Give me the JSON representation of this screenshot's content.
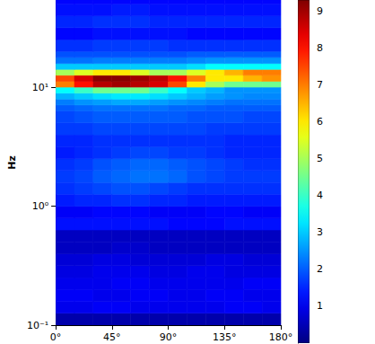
{
  "chart_data": {
    "type": "heatmap",
    "y_label": "Hz",
    "log": "y",
    "grid": false,
    "xlim": [
      0,
      180
    ],
    "xticks": [
      {
        "value": 0,
        "label": "0°"
      },
      {
        "value": 45,
        "label": "45°"
      },
      {
        "value": 90,
        "label": "90°"
      },
      {
        "value": 135,
        "label": "135°"
      },
      {
        "value": 180,
        "label": "180°"
      }
    ],
    "ylim": [
      0.1,
      54
    ],
    "yticks": [
      {
        "value": 0.1,
        "label": "10⁻¹"
      },
      {
        "value": 1,
        "label": "10⁰"
      },
      {
        "value": 10,
        "label": "10¹"
      }
    ],
    "x_edges": [
      0,
      15,
      30,
      45,
      60,
      75,
      90,
      105,
      120,
      135,
      150,
      165,
      180
    ],
    "y_edges": [
      0.1,
      0.126,
      0.158,
      0.2,
      0.251,
      0.316,
      0.398,
      0.501,
      0.631,
      0.794,
      1,
      1.26,
      1.58,
      2,
      2.51,
      3.16,
      3.98,
      5.01,
      6.31,
      7.08,
      7.94,
      8.91,
      10,
      11.2,
      12.6,
      14.1,
      15.8,
      17.8,
      20,
      25.1,
      31.6,
      39.8,
      50.1,
      54
    ],
    "cells": [
      [
        0.4,
        0.4,
        0.4,
        0.4,
        0.4,
        0.4,
        0.4,
        0.4,
        0.4,
        0.4,
        0.4,
        0.4
      ],
      [
        1.0,
        1.0,
        1.1,
        1.1,
        1.0,
        1.0,
        1.0,
        1.0,
        1.0,
        1.1,
        1.1,
        1.0
      ],
      [
        1.1,
        1.1,
        1.0,
        1.0,
        1.1,
        1.1,
        1.0,
        1.0,
        1.1,
        1.1,
        1.0,
        1.0
      ],
      [
        1.0,
        1.0,
        1.0,
        1.1,
        1.1,
        1.0,
        1.0,
        1.0,
        1.0,
        1.0,
        1.1,
        1.1
      ],
      [
        0.9,
        0.9,
        1.0,
        1.0,
        1.0,
        0.9,
        0.9,
        1.0,
        1.0,
        0.9,
        0.9,
        0.9
      ],
      [
        0.8,
        0.8,
        0.9,
        0.9,
        0.8,
        0.8,
        0.8,
        0.8,
        0.9,
        0.9,
        0.8,
        0.8
      ],
      [
        0.6,
        0.6,
        0.6,
        0.7,
        0.7,
        0.6,
        0.6,
        0.6,
        0.6,
        0.6,
        0.6,
        0.6
      ],
      [
        0.6,
        0.6,
        0.6,
        0.6,
        0.6,
        0.6,
        0.6,
        0.6,
        0.6,
        0.6,
        0.6,
        0.6
      ],
      [
        1.3,
        1.3,
        1.3,
        1.3,
        1.3,
        1.3,
        1.2,
        1.2,
        1.2,
        1.3,
        1.3,
        1.3
      ],
      [
        1.1,
        1.1,
        1.2,
        1.2,
        1.2,
        1.1,
        1.1,
        1.1,
        1.2,
        1.2,
        1.1,
        1.1
      ],
      [
        1.4,
        1.5,
        1.5,
        1.6,
        1.6,
        1.5,
        1.5,
        1.4,
        1.4,
        1.4,
        1.4,
        1.4
      ],
      [
        1.6,
        1.7,
        1.8,
        1.9,
        1.9,
        1.8,
        1.7,
        1.6,
        1.6,
        1.6,
        1.6,
        1.6
      ],
      [
        1.7,
        1.8,
        2.0,
        2.1,
        2.2,
        2.2,
        2.1,
        1.9,
        1.8,
        1.7,
        1.7,
        1.7
      ],
      [
        1.6,
        1.7,
        1.9,
        2.0,
        2.1,
        2.1,
        2.0,
        1.9,
        1.8,
        1.7,
        1.6,
        1.6
      ],
      [
        1.4,
        1.5,
        1.6,
        1.7,
        1.8,
        1.8,
        1.7,
        1.7,
        1.6,
        1.5,
        1.5,
        1.5
      ],
      [
        1.5,
        1.5,
        1.6,
        1.6,
        1.6,
        1.6,
        1.6,
        1.6,
        1.6,
        1.5,
        1.5,
        1.5
      ],
      [
        1.7,
        1.7,
        1.8,
        1.8,
        1.8,
        1.8,
        1.8,
        1.8,
        1.7,
        1.7,
        1.7,
        1.7
      ],
      [
        1.8,
        1.9,
        2.0,
        2.0,
        2.0,
        2.0,
        2.0,
        1.9,
        1.9,
        1.9,
        1.8,
        1.8
      ],
      [
        2.0,
        2.1,
        2.2,
        2.2,
        2.2,
        2.2,
        2.1,
        2.1,
        2.0,
        2.0,
        2.0,
        2.0
      ],
      [
        2.3,
        2.5,
        2.6,
        2.7,
        2.7,
        2.6,
        2.5,
        2.4,
        2.3,
        2.2,
        2.2,
        2.2
      ],
      [
        2.8,
        3.0,
        3.2,
        3.3,
        3.3,
        3.2,
        3.0,
        2.8,
        2.6,
        2.5,
        2.4,
        2.4
      ],
      [
        3.5,
        4.0,
        4.5,
        4.5,
        4.5,
        4.0,
        3.5,
        3.0,
        2.8,
        2.5,
        2.5,
        2.5
      ],
      [
        7.0,
        8.0,
        8.8,
        9.0,
        8.8,
        8.5,
        7.5,
        6.0,
        5.0,
        4.5,
        4.5,
        4.5
      ],
      [
        7.5,
        8.5,
        9.2,
        9.2,
        9.0,
        8.7,
        8.0,
        7.0,
        6.0,
        6.0,
        6.5,
        6.8
      ],
      [
        5.0,
        5.5,
        6.0,
        6.0,
        5.5,
        5.0,
        5.0,
        5.5,
        6.0,
        6.5,
        7.0,
        7.0
      ],
      [
        3.0,
        3.0,
        3.0,
        3.0,
        3.0,
        3.0,
        3.0,
        3.2,
        3.5,
        3.5,
        3.5,
        3.5
      ],
      [
        2.2,
        2.2,
        2.3,
        2.3,
        2.3,
        2.3,
        2.3,
        2.4,
        2.5,
        2.5,
        2.5,
        2.5
      ],
      [
        1.9,
        1.9,
        1.9,
        1.9,
        1.9,
        1.9,
        1.9,
        2.0,
        2.0,
        2.0,
        2.0,
        2.0
      ],
      [
        1.6,
        1.6,
        1.7,
        1.7,
        1.7,
        1.7,
        1.6,
        1.6,
        1.6,
        1.6,
        1.6,
        1.6
      ],
      [
        1.2,
        1.2,
        1.3,
        1.3,
        1.3,
        1.3,
        1.3,
        1.2,
        1.2,
        1.2,
        1.2,
        1.2
      ],
      [
        1.5,
        1.5,
        1.6,
        1.6,
        1.6,
        1.5,
        1.5,
        1.5,
        1.5,
        1.5,
        1.5,
        1.5
      ],
      [
        1.3,
        1.3,
        1.3,
        1.4,
        1.4,
        1.3,
        1.3,
        1.3,
        1.3,
        1.3,
        1.3,
        1.3
      ],
      [
        1.2,
        1.2,
        1.2,
        1.2,
        1.2,
        1.2,
        1.2,
        1.2,
        1.2,
        1.2,
        1.2,
        1.2
      ]
    ],
    "colorbar_range": [
      0,
      9.3
    ],
    "colorbar_ticks": [
      1,
      2,
      3,
      4,
      5,
      6,
      7,
      8,
      9
    ]
  }
}
